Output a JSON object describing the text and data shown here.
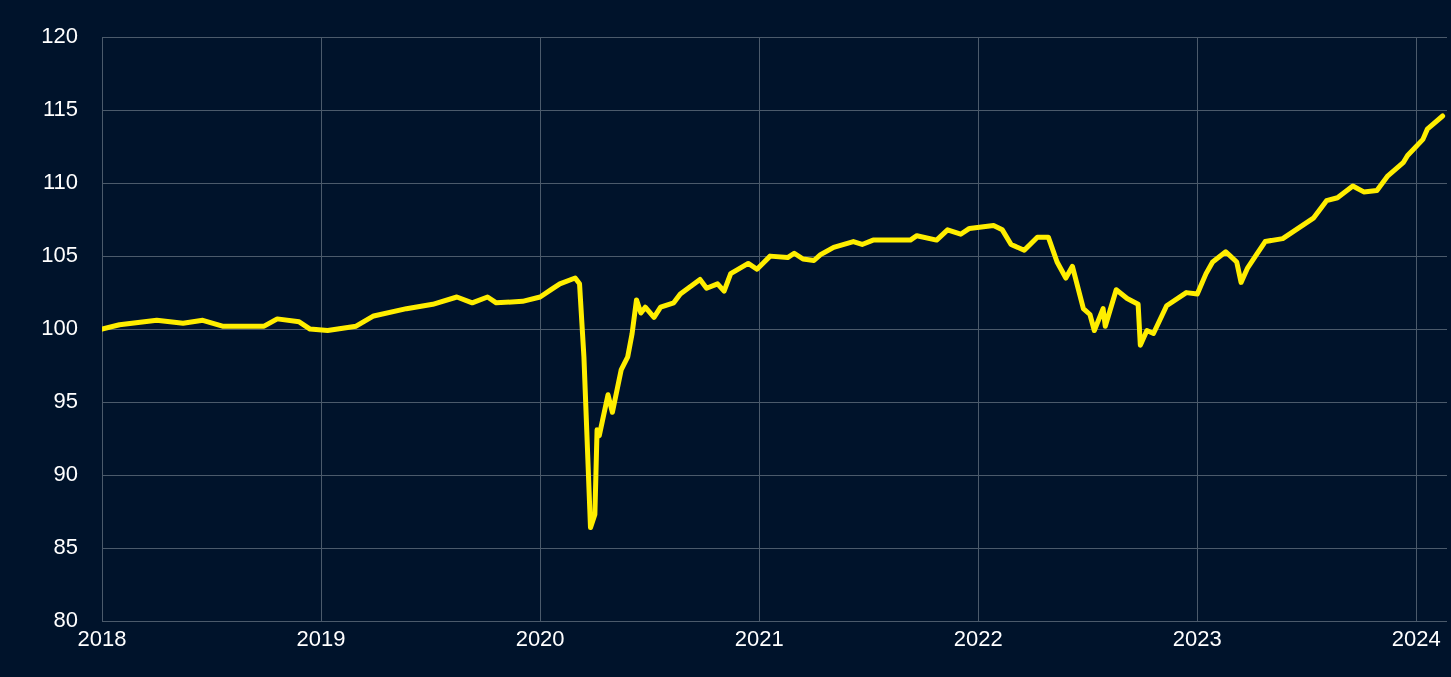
{
  "chart_data": {
    "type": "line",
    "marker": "none",
    "grid": true,
    "xlim": [
      2018,
      2024.14
    ],
    "xticks": [
      2018,
      2019,
      2020,
      2021,
      2022,
      2023,
      2024
    ],
    "ylim": [
      80,
      120
    ],
    "yticks": [
      80,
      85,
      90,
      95,
      100,
      105,
      110,
      115,
      120
    ],
    "x": [
      2018.0,
      2018.08,
      2018.25,
      2018.37,
      2018.46,
      2018.55,
      2018.74,
      2018.8,
      2018.9,
      2018.95,
      2019.03,
      2019.16,
      2019.24,
      2019.39,
      2019.51,
      2019.62,
      2019.69,
      2019.76,
      2019.8,
      2019.92,
      2020.0,
      2020.05,
      2020.09,
      2020.16,
      2020.18,
      2020.2,
      2020.23,
      2020.25,
      2020.26,
      2020.27,
      2020.31,
      2020.33,
      2020.37,
      2020.4,
      2020.42,
      2020.44,
      2020.46,
      2020.48,
      2020.52,
      2020.55,
      2020.61,
      2020.64,
      2020.73,
      2020.76,
      2020.81,
      2020.84,
      2020.87,
      2020.95,
      2020.99,
      2021.05,
      2021.13,
      2021.16,
      2021.2,
      2021.25,
      2021.28,
      2021.34,
      2021.43,
      2021.47,
      2021.52,
      2021.69,
      2021.72,
      2021.81,
      2021.86,
      2021.92,
      2021.96,
      2022.07,
      2022.11,
      2022.15,
      2022.21,
      2022.27,
      2022.32,
      2022.36,
      2022.4,
      2022.43,
      2022.48,
      2022.51,
      2022.53,
      2022.57,
      2022.58,
      2022.63,
      2022.68,
      2022.73,
      2022.74,
      2022.77,
      2022.8,
      2022.86,
      2022.95,
      2023.0,
      2023.04,
      2023.07,
      2023.13,
      2023.18,
      2023.2,
      2023.23,
      2023.31,
      2023.39,
      2023.46,
      2023.53,
      2023.59,
      2023.64,
      2023.71,
      2023.76,
      2023.82,
      2023.87,
      2023.94,
      2023.96,
      2024.03,
      2024.05,
      2024.12
    ],
    "series": [
      {
        "color": "#ffee00",
        "values": [
          100.0,
          100.3,
          100.6,
          100.4,
          100.6,
          100.2,
          100.2,
          100.7,
          100.5,
          100.0,
          99.9,
          100.2,
          100.9,
          101.4,
          101.7,
          102.2,
          101.8,
          102.2,
          101.8,
          101.9,
          102.2,
          102.7,
          103.1,
          103.5,
          103.1,
          98.1,
          86.4,
          87.3,
          93.1,
          92.7,
          95.5,
          94.3,
          97.2,
          98.1,
          99.7,
          102.0,
          101.1,
          101.5,
          100.8,
          101.5,
          101.8,
          102.4,
          103.4,
          102.8,
          103.1,
          102.6,
          103.8,
          104.5,
          104.1,
          105.0,
          104.9,
          105.2,
          104.8,
          104.7,
          105.1,
          105.6,
          106.0,
          105.8,
          106.1,
          106.1,
          106.4,
          106.1,
          106.8,
          106.5,
          106.9,
          107.1,
          106.8,
          105.8,
          105.4,
          106.3,
          106.3,
          104.6,
          103.5,
          104.3,
          101.4,
          101.0,
          99.9,
          101.4,
          100.2,
          102.7,
          102.1,
          101.7,
          98.9,
          99.9,
          99.7,
          101.6,
          102.5,
          102.4,
          103.8,
          104.6,
          105.3,
          104.6,
          103.2,
          104.2,
          106.0,
          106.2,
          106.9,
          107.6,
          108.8,
          109.0,
          109.8,
          109.4,
          109.5,
          110.5,
          111.4,
          111.9,
          113.0,
          113.7,
          114.6
        ]
      }
    ]
  }
}
